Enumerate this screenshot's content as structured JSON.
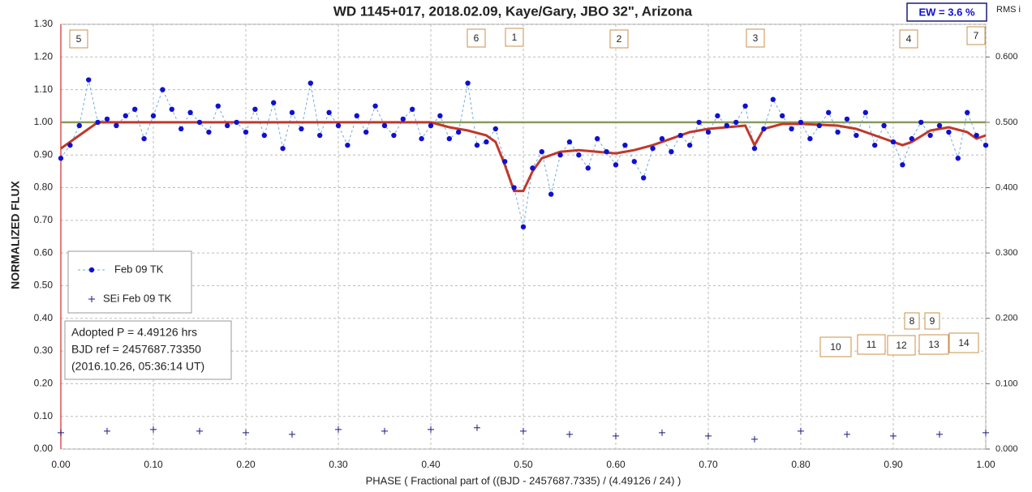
{
  "chart_data": {
    "type": "scatter",
    "title": "WD 1145+017, 2018.02.09,  Kaye/Gary,  JBO 32\", Arizona",
    "ew_label": "EW =  3.6 %",
    "rms_label": "RMS i",
    "x_label": "PHASE  ( Fractional part of ((BJD - 2457687.7335)  / (4.49126  / 24) )",
    "y_label": "NORMALIZED  FLUX",
    "info": [
      "Adopted P = 4.49126 hrs",
      "BJD ref = 2457687.73350",
      "(2016.10.26, 05:36:14 UT)"
    ],
    "xlim": [
      0,
      1
    ],
    "ylim": [
      0,
      1.3
    ],
    "y2lim": [
      0,
      0.65
    ],
    "xticks": [
      {
        "value": 0,
        "label": "0.00"
      },
      {
        "value": 0.1,
        "label": "0.10"
      },
      {
        "value": 0.2,
        "label": "0.20"
      },
      {
        "value": 0.3,
        "label": "0.30"
      },
      {
        "value": 0.4,
        "label": "0.40"
      },
      {
        "value": 0.5,
        "label": "0.50"
      },
      {
        "value": 0.6,
        "label": "0.60"
      },
      {
        "value": 0.7,
        "label": "0.70"
      },
      {
        "value": 0.8,
        "label": "0.80"
      },
      {
        "value": 0.9,
        "label": "0.90"
      },
      {
        "value": 1,
        "label": "1.00"
      }
    ],
    "yticks": [
      {
        "value": 0,
        "label": "0.00"
      },
      {
        "value": 0.1,
        "label": "0.10"
      },
      {
        "value": 0.2,
        "label": "0.20"
      },
      {
        "value": 0.3,
        "label": "0.30"
      },
      {
        "value": 0.4,
        "label": "0.40"
      },
      {
        "value": 0.5,
        "label": "0.50"
      },
      {
        "value": 0.6,
        "label": "0.60"
      },
      {
        "value": 0.7,
        "label": "0.70"
      },
      {
        "value": 0.8,
        "label": "0.80"
      },
      {
        "value": 0.9,
        "label": "0.90"
      },
      {
        "value": 1,
        "label": "1.00"
      },
      {
        "value": 1.1,
        "label": "1.10"
      },
      {
        "value": 1.2,
        "label": "1.20"
      },
      {
        "value": 1.3,
        "label": "1.30"
      }
    ],
    "y2ticks": [
      {
        "value": 0,
        "label": "0.000"
      },
      {
        "value": 0.1,
        "label": "0.100"
      },
      {
        "value": 0.2,
        "label": "0.200"
      },
      {
        "value": 0.3,
        "label": "0.300"
      },
      {
        "value": 0.4,
        "label": "0.400"
      },
      {
        "value": 0.5,
        "label": "0.500"
      },
      {
        "value": 0.6,
        "label": "0.600"
      }
    ],
    "grid": true,
    "legend": "left",
    "reference_level": 1.0,
    "reference_color": "#8a9a5b",
    "series": [
      {
        "name": "Feb 09 TK",
        "color": "#1010d0",
        "x": [
          0,
          0.01,
          0.02,
          0.03,
          0.04,
          0.05,
          0.06,
          0.07,
          0.08,
          0.09,
          0.1,
          0.11,
          0.12,
          0.13,
          0.14,
          0.15,
          0.16,
          0.17,
          0.18,
          0.19,
          0.2,
          0.21,
          0.22,
          0.23,
          0.24,
          0.25,
          0.26,
          0.27,
          0.28,
          0.29,
          0.3,
          0.31,
          0.32,
          0.33,
          0.34,
          0.35,
          0.36,
          0.37,
          0.38,
          0.39,
          0.4,
          0.41,
          0.42,
          0.43,
          0.44,
          0.45,
          0.46,
          0.47,
          0.48,
          0.49,
          0.5,
          0.51,
          0.52,
          0.53,
          0.54,
          0.55,
          0.56,
          0.57,
          0.58,
          0.59,
          0.6,
          0.61,
          0.62,
          0.63,
          0.64,
          0.65,
          0.66,
          0.67,
          0.68,
          0.69,
          0.7,
          0.71,
          0.72,
          0.73,
          0.74,
          0.75,
          0.76,
          0.77,
          0.78,
          0.79,
          0.8,
          0.81,
          0.82,
          0.83,
          0.84,
          0.85,
          0.86,
          0.87,
          0.88,
          0.89,
          0.9,
          0.91,
          0.92,
          0.93,
          0.94,
          0.95,
          0.96,
          0.97,
          0.98,
          0.99,
          1
        ],
        "values": [
          0.89,
          0.93,
          0.99,
          1.13,
          1.0,
          1.01,
          0.99,
          1.02,
          1.04,
          0.95,
          1.02,
          1.1,
          1.04,
          0.98,
          1.03,
          1.0,
          0.97,
          1.05,
          0.99,
          1.0,
          0.97,
          1.04,
          0.96,
          1.06,
          0.92,
          1.03,
          0.98,
          1.12,
          0.96,
          1.03,
          0.99,
          0.93,
          1.02,
          0.97,
          1.05,
          0.99,
          0.96,
          1.01,
          1.04,
          0.95,
          0.99,
          1.02,
          0.95,
          0.97,
          1.12,
          0.93,
          0.94,
          0.98,
          0.88,
          0.8,
          0.68,
          0.86,
          0.91,
          0.78,
          0.9,
          0.94,
          0.9,
          0.86,
          0.95,
          0.91,
          0.87,
          0.93,
          0.88,
          0.83,
          0.92,
          0.95,
          0.91,
          0.96,
          0.93,
          1.0,
          0.97,
          1.02,
          0.99,
          1.0,
          1.05,
          0.92,
          0.98,
          1.07,
          1.02,
          0.98,
          1.0,
          0.95,
          0.99,
          1.03,
          0.97,
          1.01,
          0.96,
          1.03,
          0.93,
          0.99,
          0.94,
          0.87,
          0.95,
          1.0,
          0.96,
          0.99,
          0.97,
          0.89,
          1.03,
          0.96,
          0.93
        ]
      },
      {
        "name": "SEi Feb 09 TK",
        "color": "#1a1a80",
        "x": [
          0,
          0.05,
          0.1,
          0.15,
          0.2,
          0.25,
          0.3,
          0.35,
          0.4,
          0.45,
          0.5,
          0.55,
          0.6,
          0.65,
          0.7,
          0.75,
          0.8,
          0.85,
          0.9,
          0.95,
          1
        ],
        "values": [
          0.05,
          0.055,
          0.06,
          0.055,
          0.05,
          0.045,
          0.06,
          0.055,
          0.06,
          0.065,
          0.055,
          0.045,
          0.04,
          0.05,
          0.04,
          0.03,
          0.055,
          0.045,
          0.04,
          0.045,
          0.05
        ]
      }
    ],
    "model": {
      "color": "#c0392b",
      "x": [
        0,
        0.02,
        0.04,
        0.1,
        0.2,
        0.3,
        0.4,
        0.42,
        0.44,
        0.46,
        0.47,
        0.48,
        0.49,
        0.5,
        0.51,
        0.52,
        0.54,
        0.56,
        0.58,
        0.6,
        0.62,
        0.64,
        0.66,
        0.68,
        0.7,
        0.72,
        0.74,
        0.75,
        0.76,
        0.78,
        0.8,
        0.84,
        0.86,
        0.88,
        0.9,
        0.91,
        0.92,
        0.94,
        0.96,
        0.98,
        0.99,
        1
      ],
      "values": [
        0.92,
        0.96,
        1.0,
        1.0,
        1.0,
        1.0,
        1.0,
        0.985,
        0.975,
        0.96,
        0.94,
        0.87,
        0.79,
        0.79,
        0.85,
        0.89,
        0.91,
        0.915,
        0.91,
        0.905,
        0.915,
        0.93,
        0.95,
        0.97,
        0.98,
        0.985,
        0.99,
        0.93,
        0.98,
        0.995,
        0.995,
        0.99,
        0.98,
        0.96,
        0.94,
        0.93,
        0.94,
        0.975,
        0.985,
        0.97,
        0.95,
        0.96
      ]
    },
    "annotations": [
      "5",
      "6",
      "1",
      "2",
      "3",
      "4",
      "7",
      "8",
      "9",
      "10",
      "11",
      "12",
      "13",
      "14"
    ]
  }
}
